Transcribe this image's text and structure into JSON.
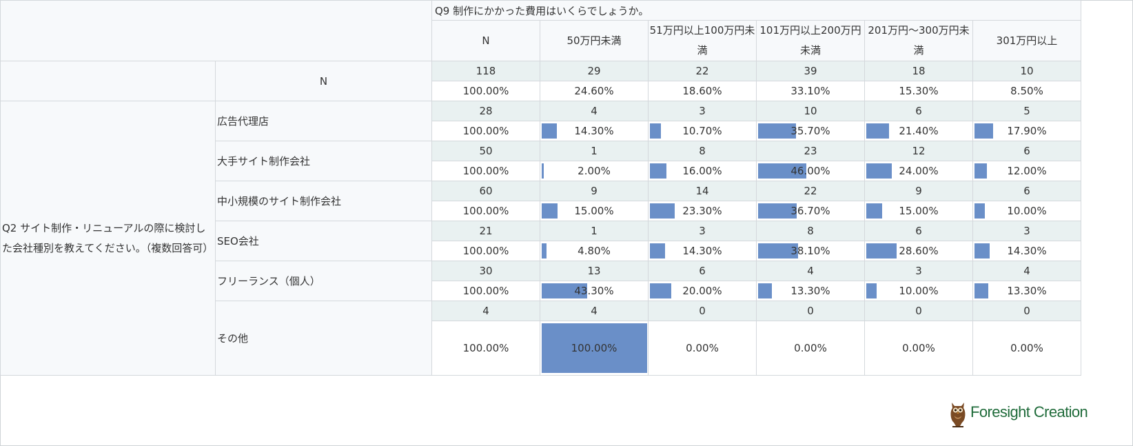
{
  "chart_data": {
    "type": "table",
    "question_header": "Q9 制作にかかった費用はいくらでしょうか。",
    "columns": [
      "N",
      "50万円未満",
      "51万円以上100万円未満",
      "101万円以上200万円未満",
      "201万円～300万円未満",
      "301万円以上"
    ],
    "total_label": "N",
    "total": {
      "counts": [
        "118",
        "29",
        "22",
        "39",
        "18",
        "10"
      ],
      "percents": [
        "100.00%",
        "24.60%",
        "18.60%",
        "33.10%",
        "15.30%",
        "8.50%"
      ]
    },
    "row_question": "Q2 サイト制作・リニューアルの際に検討した会社種別を教えてください。（複数回答可）",
    "rows": [
      {
        "label": "広告代理店",
        "counts": [
          "28",
          "4",
          "3",
          "10",
          "6",
          "5"
        ],
        "percents": [
          "100.00%",
          "14.30%",
          "10.70%",
          "35.70%",
          "21.40%",
          "17.90%"
        ]
      },
      {
        "label": "大手サイト制作会社",
        "counts": [
          "50",
          "1",
          "8",
          "23",
          "12",
          "6"
        ],
        "percents": [
          "100.00%",
          "2.00%",
          "16.00%",
          "46.00%",
          "24.00%",
          "12.00%"
        ]
      },
      {
        "label": "中小規模のサイト制作会社",
        "counts": [
          "60",
          "9",
          "14",
          "22",
          "9",
          "6"
        ],
        "percents": [
          "100.00%",
          "15.00%",
          "23.30%",
          "36.70%",
          "15.00%",
          "10.00%"
        ]
      },
      {
        "label": "SEO会社",
        "counts": [
          "21",
          "1",
          "3",
          "8",
          "6",
          "3"
        ],
        "percents": [
          "100.00%",
          "4.80%",
          "14.30%",
          "38.10%",
          "28.60%",
          "14.30%"
        ]
      },
      {
        "label": "フリーランス（個人）",
        "counts": [
          "30",
          "13",
          "6",
          "4",
          "3",
          "4"
        ],
        "percents": [
          "100.00%",
          "43.30%",
          "20.00%",
          "13.30%",
          "10.00%",
          "13.30%"
        ]
      },
      {
        "label": "その他",
        "counts": [
          "4",
          "4",
          "0",
          "0",
          "0",
          "0"
        ],
        "percents": [
          "100.00%",
          "100.00%",
          "0.00%",
          "0.00%",
          "0.00%",
          "0.00%"
        ]
      }
    ],
    "bar_color": "#6a8fc8",
    "count_row_bg": "#e9f1f1",
    "header_bg": "#f7f9fb"
  },
  "logo": {
    "text": "Foresight Creation",
    "color": "#1f6b3a",
    "icon": "owl-icon"
  }
}
